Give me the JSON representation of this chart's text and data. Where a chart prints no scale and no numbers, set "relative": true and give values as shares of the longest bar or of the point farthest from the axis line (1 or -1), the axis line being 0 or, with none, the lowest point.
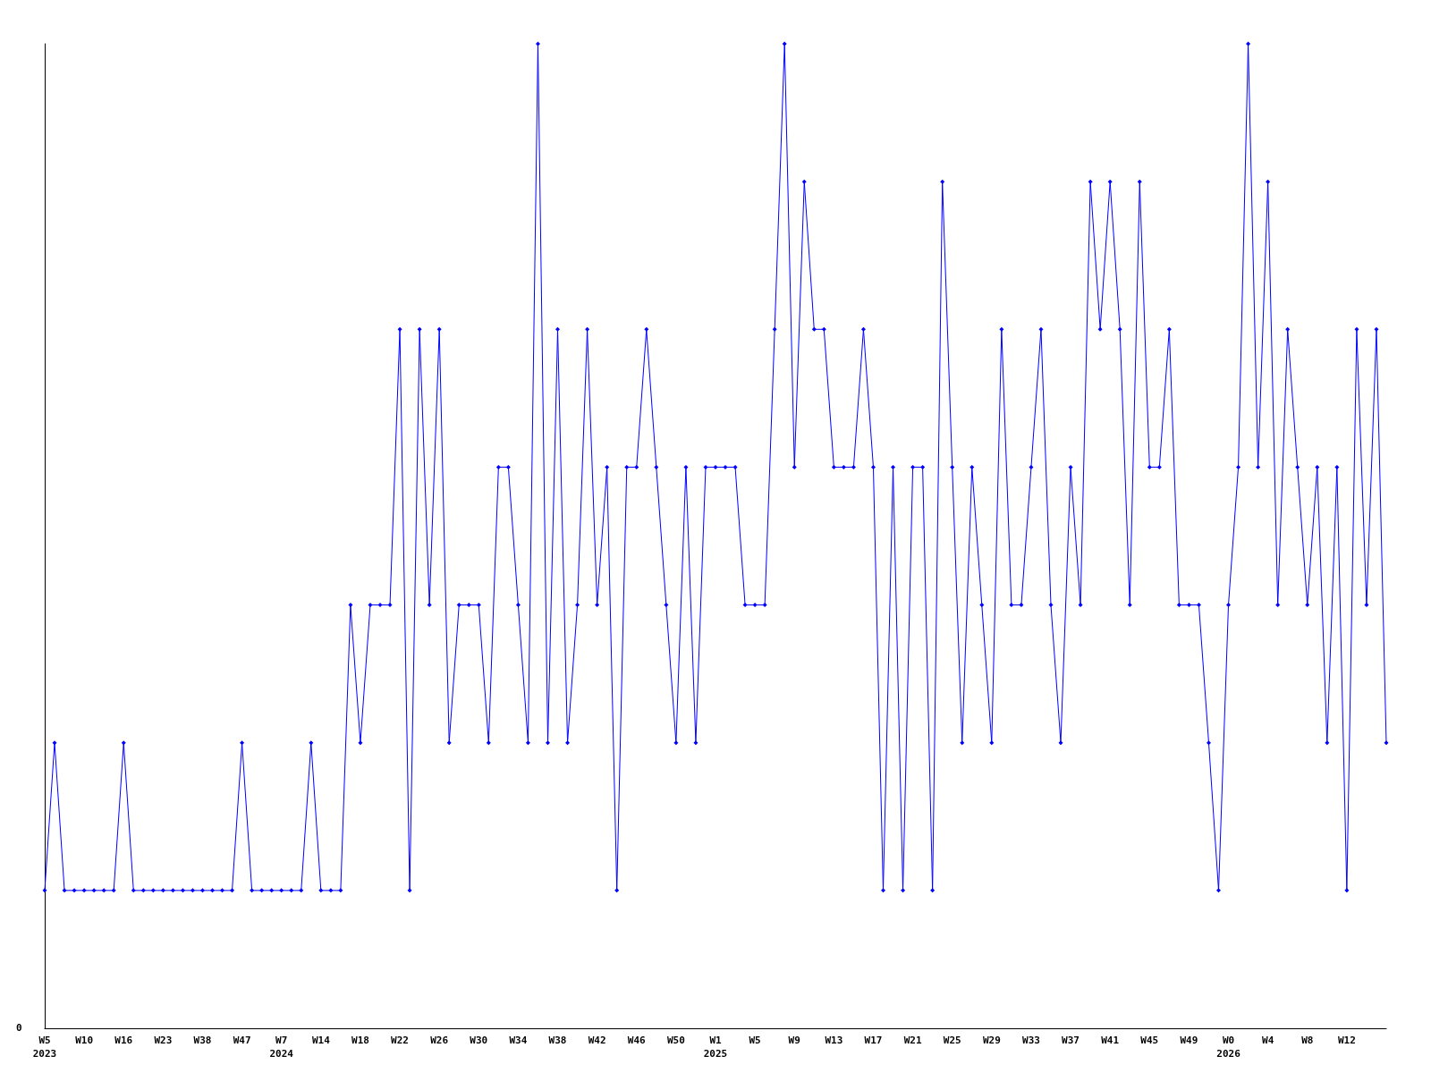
{
  "chart_data": {
    "type": "line",
    "relative": true,
    "color": "#0000ff",
    "marker": "diamond",
    "grid": false,
    "annotations": [
      "0"
    ],
    "categories": [
      "W5\n2023",
      null,
      null,
      null,
      "W10",
      null,
      null,
      null,
      "W16",
      null,
      null,
      null,
      "W23",
      null,
      null,
      null,
      "W38",
      null,
      null,
      null,
      "W47",
      null,
      null,
      null,
      "W7\n2024",
      null,
      null,
      null,
      "W14",
      null,
      null,
      null,
      "W18",
      null,
      null,
      null,
      "W22",
      null,
      null,
      null,
      "W26",
      null,
      null,
      null,
      "W30",
      null,
      null,
      null,
      "W34",
      null,
      null,
      null,
      "W38",
      null,
      null,
      null,
      "W42",
      null,
      null,
      null,
      "W46",
      null,
      null,
      null,
      "W50",
      null,
      null,
      null,
      "W1\n2025",
      null,
      null,
      null,
      "W5",
      null,
      null,
      null,
      "W9",
      null,
      null,
      null,
      "W13",
      null,
      null,
      null,
      "W17",
      null,
      null,
      null,
      "W21",
      null,
      null,
      null,
      "W25",
      null,
      null,
      null,
      "W29",
      null,
      null,
      null,
      "W33",
      null,
      null,
      null,
      "W37",
      null,
      null,
      null,
      "W41",
      null,
      null,
      null,
      "W45",
      null,
      null,
      null,
      "W49",
      null,
      null,
      null,
      "W0\n2026",
      null,
      null,
      null,
      "W4",
      null,
      null,
      null,
      "W8",
      null,
      null,
      null,
      "W12",
      null,
      null,
      null,
      null
    ],
    "values": [
      0.14,
      0.29,
      0.14,
      0.14,
      0.14,
      0.14,
      0.14,
      0.14,
      0.29,
      0.14,
      0.14,
      0.14,
      0.14,
      0.14,
      0.14,
      0.14,
      0.14,
      0.14,
      0.14,
      0.14,
      0.29,
      0.14,
      0.14,
      0.14,
      0.14,
      0.14,
      0.14,
      0.29,
      0.14,
      0.14,
      0.14,
      0.43,
      0.29,
      0.43,
      0.43,
      0.43,
      0.71,
      0.14,
      0.71,
      0.43,
      0.71,
      0.29,
      0.43,
      0.43,
      0.43,
      0.29,
      0.57,
      0.57,
      0.43,
      0.29,
      1,
      0.29,
      0.71,
      0.29,
      0.43,
      0.71,
      0.43,
      0.57,
      0.14,
      0.57,
      0.57,
      0.71,
      0.57,
      0.43,
      0.29,
      0.57,
      0.29,
      0.57,
      0.57,
      0.57,
      0.57,
      0.43,
      0.43,
      0.43,
      0.71,
      1,
      0.57,
      0.86,
      0.71,
      0.71,
      0.57,
      0.57,
      0.57,
      0.71,
      0.57,
      0.14,
      0.57,
      0.14,
      0.57,
      0.57,
      0.14,
      0.86,
      0.57,
      0.29,
      0.57,
      0.43,
      0.29,
      0.71,
      0.43,
      0.43,
      0.57,
      0.71,
      0.43,
      0.29,
      0.57,
      0.43,
      0.86,
      0.71,
      0.86,
      0.71,
      0.43,
      0.86,
      0.57,
      0.57,
      0.71,
      0.43,
      0.43,
      0.43,
      0.29,
      0.14,
      0.43,
      0.57,
      1,
      0.57,
      0.86,
      0.43,
      0.71,
      0.57,
      0.43,
      0.57,
      0.29,
      0.57,
      0.14,
      0.71,
      0.43,
      0.71,
      0.29
    ]
  }
}
